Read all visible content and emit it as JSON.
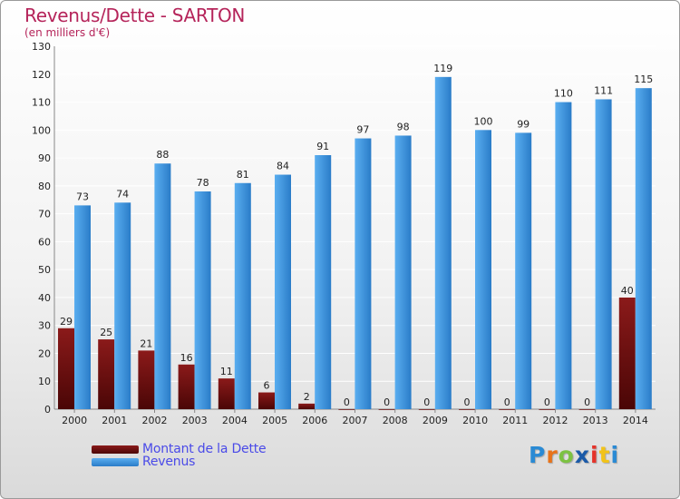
{
  "title": "Revenus/Dette - SARTON",
  "subtitle": "(en milliers d'€)",
  "logo_text": "Proxiti",
  "logo_colors": [
    "#2a8ad4",
    "#e8731a",
    "#7cc242",
    "#1a5aa8",
    "#e5332a",
    "#f2c318",
    "#2a8ad4"
  ],
  "colors": {
    "title": "#b5245a",
    "legend_text": "#4a4ae8",
    "dette": "#8b1a1a",
    "dette_dark": "#4a0606",
    "revenus": "#5aaef0",
    "revenus_dark": "#2a7cc8"
  },
  "legend": {
    "dette_label": "Montant de la Dette",
    "revenus_label": "Revenus"
  },
  "chart_data": {
    "type": "bar",
    "categories": [
      "2000",
      "2001",
      "2002",
      "2003",
      "2004",
      "2005",
      "2006",
      "2007",
      "2008",
      "2009",
      "2010",
      "2011",
      "2012",
      "2013",
      "2014"
    ],
    "series": [
      {
        "name": "Montant de la Dette",
        "values": [
          29,
          25,
          21,
          16,
          11,
          6,
          2,
          0,
          0,
          0,
          0,
          0,
          0,
          0,
          40
        ]
      },
      {
        "name": "Revenus",
        "values": [
          73,
          74,
          88,
          78,
          81,
          84,
          91,
          97,
          98,
          119,
          100,
          99,
          110,
          111,
          115
        ]
      }
    ],
    "ylim": [
      0,
      130
    ],
    "yticks": [
      0,
      10,
      20,
      30,
      40,
      50,
      60,
      70,
      80,
      90,
      100,
      110,
      120,
      130
    ],
    "grid": true,
    "legend_position": "bottom-left"
  }
}
